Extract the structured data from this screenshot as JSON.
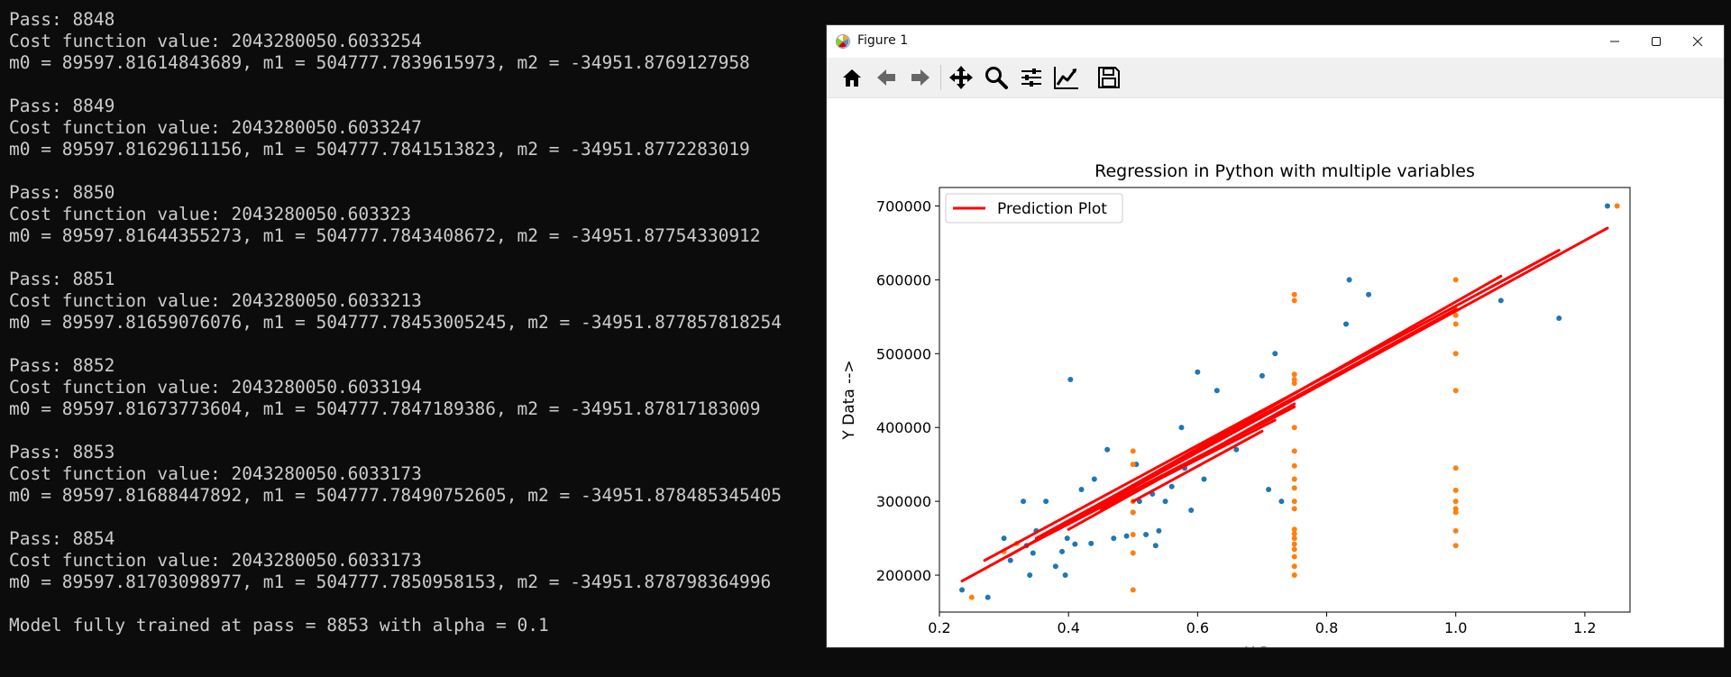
{
  "console": {
    "passes": [
      {
        "pass": "Pass: 8848",
        "cost": "Cost function value: 2043280050.6033254",
        "params": "m0 = 89597.81614843689, m1 = 504777.7839615973, m2 = -34951.8769127958"
      },
      {
        "pass": "Pass: 8849",
        "cost": "Cost function value: 2043280050.6033247",
        "params": "m0 = 89597.81629611156, m1 = 504777.7841513823, m2 = -34951.8772283019"
      },
      {
        "pass": "Pass: 8850",
        "cost": "Cost function value: 2043280050.603323",
        "params": "m0 = 89597.81644355273, m1 = 504777.7843408672, m2 = -34951.87754330912"
      },
      {
        "pass": "Pass: 8851",
        "cost": "Cost function value: 2043280050.6033213",
        "params": "m0 = 89597.81659076076, m1 = 504777.78453005245, m2 = -34951.877857818254"
      },
      {
        "pass": "Pass: 8852",
        "cost": "Cost function value: 2043280050.6033194",
        "params": "m0 = 89597.81673773604, m1 = 504777.7847189386, m2 = -34951.87817183009"
      },
      {
        "pass": "Pass: 8853",
        "cost": "Cost function value: 2043280050.6033173",
        "params": "m0 = 89597.81688447892, m1 = 504777.78490752605, m2 = -34951.878485345405"
      },
      {
        "pass": "Pass: 8854",
        "cost": "Cost function value: 2043280050.6033173",
        "params": "m0 = 89597.81703098977, m1 = 504777.7850958153, m2 = -34951.878798364996"
      }
    ],
    "final_message": "Model fully trained at pass = 8853 with alpha = 0.1"
  },
  "window": {
    "title": "Figure 1",
    "app_icon": "matplotlib-icon",
    "controls": [
      "minimize-icon",
      "maximize-icon",
      "close-icon"
    ]
  },
  "toolbar": {
    "tools": [
      {
        "name": "home-icon"
      },
      {
        "name": "back-arrow-icon"
      },
      {
        "name": "forward-arrow-icon"
      },
      {
        "name": "pan-move-icon"
      },
      {
        "name": "zoom-magnifier-icon"
      },
      {
        "name": "configure-subplots-icon"
      },
      {
        "name": "edit-axis-icon"
      },
      {
        "name": "save-figure-icon"
      }
    ]
  },
  "chart_data": {
    "type": "scatter",
    "title": "Regression in Python with multiple variables",
    "xlabel": "X Data -->",
    "ylabel": "Y Data -->",
    "xlim": [
      0.2,
      1.27
    ],
    "ylim": [
      150000,
      725000
    ],
    "xticks": [
      {
        "value": 0.2,
        "label": "0.2"
      },
      {
        "value": 0.4,
        "label": "0.4"
      },
      {
        "value": 0.6,
        "label": "0.6"
      },
      {
        "value": 0.8,
        "label": "0.8"
      },
      {
        "value": 1.0,
        "label": "1.0"
      },
      {
        "value": 1.2,
        "label": "1.2"
      }
    ],
    "yticks": [
      {
        "value": 200000,
        "label": "200000"
      },
      {
        "value": 300000,
        "label": "300000"
      },
      {
        "value": 400000,
        "label": "400000"
      },
      {
        "value": 500000,
        "label": "500000"
      },
      {
        "value": 600000,
        "label": "600000"
      },
      {
        "value": 700000,
        "label": "700000"
      }
    ],
    "legend": {
      "position": "top-left",
      "entries": [
        "Prediction Plot"
      ]
    },
    "colors": {
      "series_1": "#1f77b4",
      "series_2": "#ff7f0e",
      "prediction": "#ff0000"
    },
    "series": [
      {
        "color": "#1f77b4",
        "points": [
          [
            0.235,
            180000
          ],
          [
            0.275,
            170000
          ],
          [
            0.3,
            250000
          ],
          [
            0.31,
            220000
          ],
          [
            0.33,
            300000
          ],
          [
            0.335,
            240000
          ],
          [
            0.34,
            200000
          ],
          [
            0.345,
            230000
          ],
          [
            0.35,
            260000
          ],
          [
            0.365,
            300000
          ],
          [
            0.38,
            212000
          ],
          [
            0.39,
            232000
          ],
          [
            0.395,
            200000
          ],
          [
            0.398,
            250000
          ],
          [
            0.403,
            465000
          ],
          [
            0.41,
            242000
          ],
          [
            0.42,
            316000
          ],
          [
            0.435,
            243000
          ],
          [
            0.44,
            330000
          ],
          [
            0.46,
            370000
          ],
          [
            0.47,
            250000
          ],
          [
            0.49,
            253000
          ],
          [
            0.5,
            285000
          ],
          [
            0.505,
            350000
          ],
          [
            0.51,
            300000
          ],
          [
            0.52,
            255000
          ],
          [
            0.53,
            310000
          ],
          [
            0.535,
            240000
          ],
          [
            0.54,
            260000
          ],
          [
            0.55,
            300000
          ],
          [
            0.56,
            320000
          ],
          [
            0.575,
            400000
          ],
          [
            0.58,
            345000
          ],
          [
            0.59,
            288000
          ],
          [
            0.6,
            475000
          ],
          [
            0.61,
            330000
          ],
          [
            0.63,
            450000
          ],
          [
            0.66,
            370000
          ],
          [
            0.7,
            470000
          ],
          [
            0.71,
            316000
          ],
          [
            0.72,
            500000
          ],
          [
            0.73,
            300000
          ],
          [
            0.83,
            540000
          ],
          [
            0.835,
            600000
          ],
          [
            0.865,
            580000
          ],
          [
            1.07,
            572000
          ],
          [
            1.16,
            548000
          ],
          [
            1.235,
            700000
          ]
        ]
      },
      {
        "color": "#ff7f0e",
        "points": [
          [
            0.25,
            170000
          ],
          [
            0.3,
            232000
          ],
          [
            0.32,
            243000
          ],
          [
            0.5,
            180000
          ],
          [
            0.5,
            230000
          ],
          [
            0.5,
            255000
          ],
          [
            0.5,
            285000
          ],
          [
            0.5,
            300000
          ],
          [
            0.5,
            320000
          ],
          [
            0.5,
            350000
          ],
          [
            0.5,
            368000
          ],
          [
            0.75,
            200000
          ],
          [
            0.75,
            212000
          ],
          [
            0.75,
            225000
          ],
          [
            0.75,
            235000
          ],
          [
            0.75,
            242000
          ],
          [
            0.75,
            250000
          ],
          [
            0.75,
            256000
          ],
          [
            0.75,
            262000
          ],
          [
            0.75,
            290000
          ],
          [
            0.75,
            300000
          ],
          [
            0.75,
            318000
          ],
          [
            0.75,
            330000
          ],
          [
            0.75,
            348000
          ],
          [
            0.75,
            368000
          ],
          [
            0.75,
            400000
          ],
          [
            0.75,
            460000
          ],
          [
            0.75,
            465000
          ],
          [
            0.75,
            472000
          ],
          [
            0.75,
            572000
          ],
          [
            0.75,
            580000
          ],
          [
            1.0,
            240000
          ],
          [
            1.0,
            260000
          ],
          [
            1.0,
            285000
          ],
          [
            1.0,
            290000
          ],
          [
            1.0,
            300000
          ],
          [
            1.0,
            315000
          ],
          [
            1.0,
            345000
          ],
          [
            1.0,
            450000
          ],
          [
            1.0,
            500000
          ],
          [
            1.0,
            540000
          ],
          [
            1.0,
            552000
          ],
          [
            1.0,
            560000
          ],
          [
            1.0,
            600000
          ],
          [
            1.25,
            700000
          ]
        ]
      }
    ],
    "prediction_lines": [
      [
        [
          0.235,
          192000
        ],
        [
          1.235,
          670000
        ]
      ],
      [
        [
          0.27,
          220000
        ],
        [
          1.16,
          640000
        ]
      ],
      [
        [
          0.305,
          225000
        ],
        [
          1.07,
          605000
        ]
      ],
      [
        [
          0.35,
          250000
        ],
        [
          1.0,
          560000
        ]
      ],
      [
        [
          0.34,
          242000
        ],
        [
          0.75,
          428000
        ]
      ],
      [
        [
          0.4,
          262000
        ],
        [
          0.75,
          432000
        ]
      ],
      [
        [
          0.45,
          290000
        ],
        [
          0.72,
          410000
        ]
      ],
      [
        [
          0.5,
          300000
        ],
        [
          0.7,
          395000
        ]
      ]
    ]
  }
}
